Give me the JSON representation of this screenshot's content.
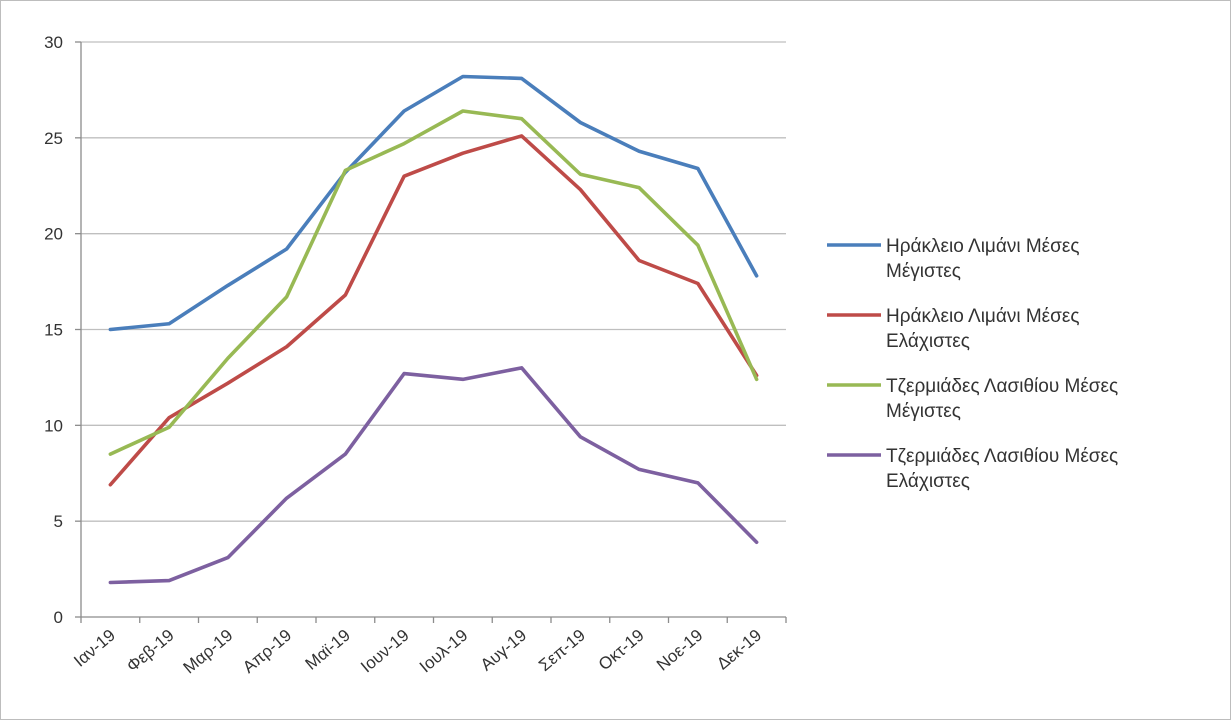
{
  "chart_data": {
    "type": "line",
    "categories": [
      "Ιαν-19",
      "Φεβ-19",
      "Μαρ-19",
      "Απρ-19",
      "Μαϊ-19",
      "Ιουν-19",
      "Ιουλ-19",
      "Αυγ-19",
      "Σεπ-19",
      "Οκτ-19",
      "Νοε-19",
      "Δεκ-19"
    ],
    "ylim": [
      0,
      30
    ],
    "yticks": [
      "0",
      "5",
      "10",
      "15",
      "20",
      "25",
      "30"
    ],
    "grid": true,
    "legend_position": "right",
    "title": "",
    "xlabel": "",
    "ylabel": "",
    "series": [
      {
        "name": "Ηράκλειο Λιμάνι  Μέσες Μέγιστες",
        "legend_lines": [
          "Ηράκλειο Λιμάνι  Μέσες",
          "Μέγιστες"
        ],
        "color": "#4a7ebb",
        "values": [
          15.0,
          15.3,
          17.3,
          19.2,
          23.2,
          26.4,
          28.2,
          28.1,
          25.8,
          24.3,
          23.4,
          17.8
        ]
      },
      {
        "name": "Ηράκλειο Λιμάνι  Μέσες Ελάχιστες",
        "legend_lines": [
          "Ηράκλειο Λιμάνι  Μέσες",
          "Ελάχιστες"
        ],
        "color": "#be4b48",
        "values": [
          6.9,
          10.4,
          12.2,
          14.1,
          16.8,
          23.0,
          24.2,
          25.1,
          22.3,
          18.6,
          17.4,
          12.6
        ]
      },
      {
        "name": "Τζερμιάδες  Λασιθίου Μέσες Μέγιστες",
        "legend_lines": [
          "Τζερμιάδες  Λασιθίου Μέσες",
          "Μέγιστες"
        ],
        "color": "#98b954",
        "values": [
          8.5,
          9.9,
          13.5,
          16.7,
          23.3,
          24.7,
          26.4,
          26.0,
          23.1,
          22.4,
          19.4,
          12.4
        ]
      },
      {
        "name": "Τζερμιάδες  Λασιθίου Μέσες Ελάχιστες",
        "legend_lines": [
          "Τζερμιάδες  Λασιθίου Μέσες",
          "Ελάχιστες"
        ],
        "color": "#7d60a0",
        "values": [
          1.8,
          1.9,
          3.1,
          6.2,
          8.5,
          12.7,
          12.4,
          13.0,
          9.4,
          7.7,
          7.0,
          3.9
        ]
      }
    ]
  }
}
